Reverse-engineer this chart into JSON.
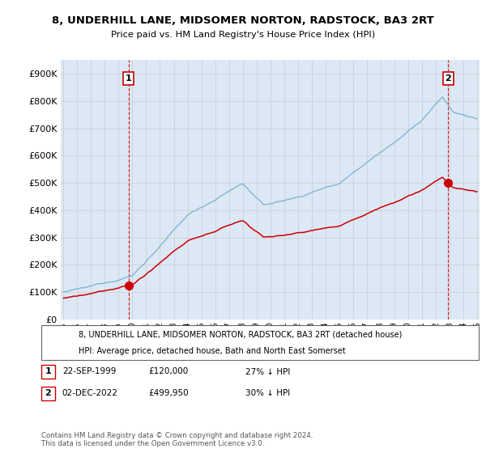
{
  "title": "8, UNDERHILL LANE, MIDSOMER NORTON, RADSTOCK, BA3 2RT",
  "subtitle": "Price paid vs. HM Land Registry's House Price Index (HPI)",
  "red_label": "8, UNDERHILL LANE, MIDSOMER NORTON, RADSTOCK, BA3 2RT (detached house)",
  "blue_label": "HPI: Average price, detached house, Bath and North East Somerset",
  "transaction1_date": "22-SEP-1999",
  "transaction1_price": "£120,000",
  "transaction1_hpi": "27% ↓ HPI",
  "transaction2_date": "02-DEC-2022",
  "transaction2_price": "£499,950",
  "transaction2_hpi": "30% ↓ HPI",
  "footer": "Contains HM Land Registry data © Crown copyright and database right 2024.\nThis data is licensed under the Open Government Licence v3.0.",
  "red_color": "#cc0000",
  "blue_color": "#7bafd4",
  "grid_color": "#cccccc",
  "plot_bg_color": "#dce8f5",
  "ylim": [
    0,
    950000
  ],
  "yticks": [
    0,
    100000,
    200000,
    300000,
    400000,
    500000,
    600000,
    700000,
    800000,
    900000
  ],
  "ytick_labels": [
    "£0",
    "£100K",
    "£200K",
    "£300K",
    "£400K",
    "£500K",
    "£600K",
    "£700K",
    "£800K",
    "£900K"
  ],
  "t1_x": 1999.72,
  "t2_x": 2022.92,
  "t1_y": 120000,
  "t2_y": 499950,
  "xmin": 1994.8,
  "xmax": 2025.2
}
